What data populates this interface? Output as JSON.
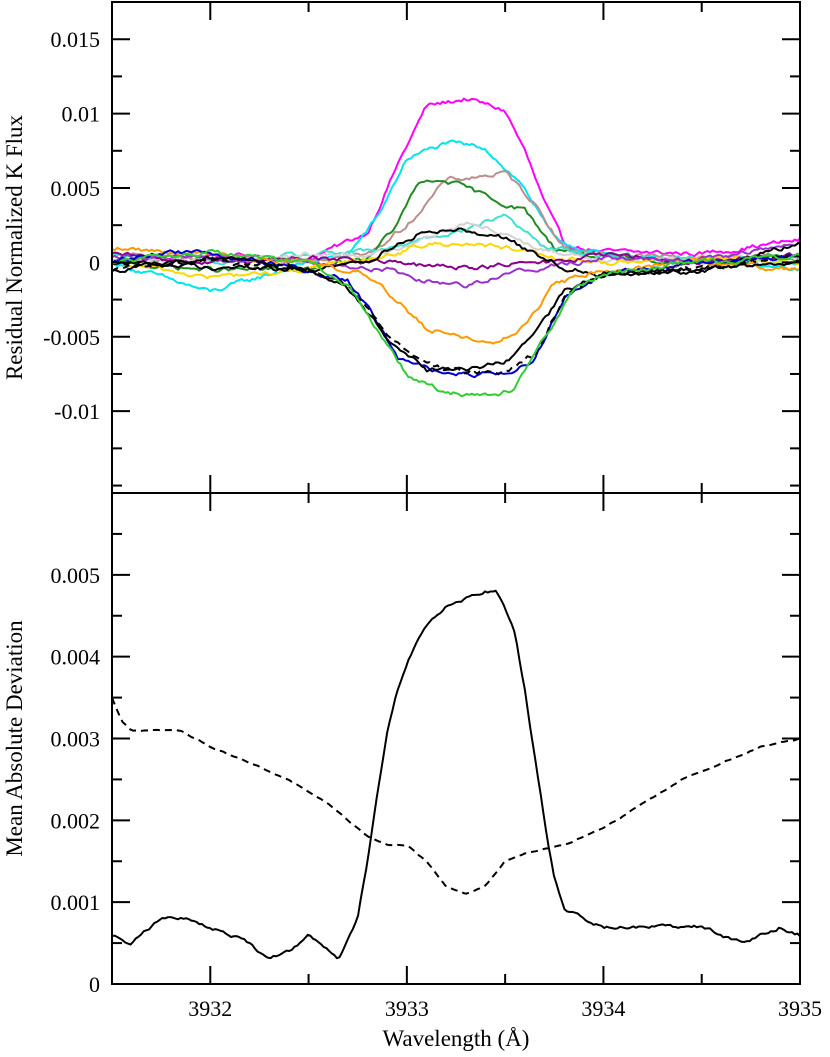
{
  "chart_data": [
    {
      "type": "line",
      "panel": "top",
      "title": "",
      "xlabel": "",
      "ylabel": "Residual Normalized K Flux",
      "xlim": [
        3931.5,
        3935.0
      ],
      "ylim": [
        -0.0155,
        0.0175
      ],
      "yticks": [
        -0.01,
        -0.005,
        0,
        0.005,
        0.01,
        0.015
      ],
      "ytick_labels": [
        "-0.01",
        "-0.005",
        "0",
        "0.005",
        "0.01",
        "0.015"
      ],
      "series": [
        {
          "color": "#ff00ff",
          "style": "solid",
          "x": [
            3931.5,
            3932.0,
            3932.5,
            3932.8,
            3932.95,
            3933.1,
            3933.3,
            3933.5,
            3933.6,
            3933.7,
            3933.8,
            3934.0,
            3934.5,
            3935.0
          ],
          "y": [
            0.0,
            0.0005,
            0.0002,
            0.002,
            0.0065,
            0.0105,
            0.011,
            0.0102,
            0.0075,
            0.004,
            0.0012,
            0.0007,
            0.0006,
            0.0015
          ]
        },
        {
          "color": "#00e5ee",
          "style": "solid",
          "x": [
            3931.5,
            3932.0,
            3932.5,
            3932.7,
            3932.85,
            3933.0,
            3933.2,
            3933.4,
            3933.6,
            3933.75,
            3934.0,
            3934.5,
            3935.0
          ],
          "y": [
            0.0,
            -0.002,
            0.0,
            0.0005,
            0.003,
            0.007,
            0.008,
            0.0077,
            0.005,
            0.0015,
            0.0005,
            0.0,
            -0.0005
          ]
        },
        {
          "color": "#bc8f8f",
          "style": "solid",
          "x": [
            3931.5,
            3932.0,
            3932.5,
            3932.8,
            3933.0,
            3933.2,
            3933.5,
            3933.65,
            3933.8,
            3934.0,
            3934.5,
            3935.0
          ],
          "y": [
            0.0005,
            0.0,
            0.0003,
            0.0005,
            0.0025,
            0.0055,
            0.006,
            0.004,
            0.001,
            0.0005,
            0.0003,
            0.0005
          ]
        },
        {
          "color": "#228b22",
          "style": "solid",
          "x": [
            3931.5,
            3932.0,
            3932.5,
            3932.8,
            3932.95,
            3933.05,
            3933.2,
            3933.45,
            3933.6,
            3933.75,
            3934.0,
            3934.5,
            3935.0
          ],
          "y": [
            0.0,
            -0.0005,
            -0.0005,
            0.0003,
            0.0025,
            0.0052,
            0.0055,
            0.0042,
            0.0035,
            0.001,
            0.0003,
            0.0,
            0.0003
          ]
        },
        {
          "color": "#40e0d0",
          "style": "solid",
          "x": [
            3931.5,
            3932.0,
            3932.5,
            3932.9,
            3933.1,
            3933.3,
            3933.5,
            3933.7,
            3934.0,
            3934.5,
            3935.0
          ],
          "y": [
            0.0005,
            0.0,
            0.0005,
            0.0008,
            0.0018,
            0.0022,
            0.0032,
            0.001,
            0.0005,
            0.0003,
            0.0
          ]
        },
        {
          "color": "#d3d3d3",
          "style": "solid",
          "x": [
            3931.5,
            3932.0,
            3932.5,
            3932.9,
            3933.1,
            3933.3,
            3933.5,
            3933.7,
            3934.0,
            3934.5,
            3935.0
          ],
          "y": [
            0.0,
            0.0002,
            0.0005,
            0.0006,
            0.0018,
            0.0026,
            0.002,
            0.0008,
            0.0003,
            0.0,
            0.0003
          ]
        },
        {
          "color": "#ffd700",
          "style": "solid",
          "x": [
            3931.5,
            3932.0,
            3932.5,
            3932.9,
            3933.1,
            3933.3,
            3933.5,
            3933.7,
            3934.0,
            3934.5,
            3935.0
          ],
          "y": [
            0.0,
            -0.001,
            -0.0005,
            0.0005,
            0.0012,
            0.0013,
            0.001,
            0.0003,
            0.0,
            0.0003,
            0.0
          ]
        },
        {
          "color": "#8b008b",
          "style": "solid",
          "x": [
            3931.5,
            3932.0,
            3932.5,
            3932.9,
            3933.1,
            3933.3,
            3933.5,
            3933.7,
            3934.0,
            3934.5,
            3935.0
          ],
          "y": [
            0.0005,
            0.0,
            0.0003,
            0.0,
            -0.0003,
            -0.0003,
            -0.0002,
            0.0,
            0.0005,
            0.0,
            0.0005
          ]
        },
        {
          "color": "#9932cc",
          "style": "solid",
          "x": [
            3931.5,
            3932.0,
            3932.5,
            3932.9,
            3933.1,
            3933.3,
            3933.5,
            3933.7,
            3934.0,
            3934.5,
            3935.0
          ],
          "y": [
            0.0005,
            0.0003,
            0.0,
            -0.0005,
            -0.0012,
            -0.0015,
            -0.0008,
            -0.0003,
            0.0003,
            0.0003,
            0.0012
          ]
        },
        {
          "color": "#000000",
          "style": "solid",
          "x": [
            3931.5,
            3932.0,
            3932.5,
            3932.8,
            3932.95,
            3933.1,
            3933.3,
            3933.5,
            3933.65,
            3933.8,
            3934.0,
            3934.5,
            3935.0
          ],
          "y": [
            0.0,
            -0.0003,
            -0.0005,
            0.0,
            0.0013,
            0.0022,
            0.0022,
            0.0017,
            0.0005,
            -0.0003,
            -0.0008,
            -0.0005,
            0.0013
          ]
        },
        {
          "color": "#ff9900",
          "style": "solid",
          "x": [
            3931.5,
            3932.0,
            3932.5,
            3932.8,
            3932.95,
            3933.1,
            3933.3,
            3933.45,
            3933.6,
            3933.75,
            3934.0,
            3934.5,
            3935.0
          ],
          "y": [
            0.001,
            0.0005,
            0.0,
            -0.0008,
            -0.0025,
            -0.0045,
            -0.005,
            -0.0055,
            -0.0042,
            -0.0015,
            -0.0005,
            0.0,
            -0.0005
          ]
        },
        {
          "color": "#0000cd",
          "style": "solid",
          "x": [
            3931.5,
            3931.8,
            3932.0,
            3932.5,
            3932.7,
            3932.85,
            3932.95,
            3933.1,
            3933.3,
            3933.5,
            3933.65,
            3933.8,
            3934.0,
            3934.5,
            3935.0
          ],
          "y": [
            0.0,
            0.0008,
            0.0005,
            -0.0005,
            -0.0012,
            -0.004,
            -0.0065,
            -0.0072,
            -0.0075,
            -0.0075,
            -0.0065,
            -0.0025,
            -0.0008,
            0.0,
            0.0005
          ]
        },
        {
          "color": "#000000",
          "style": "dashed",
          "x": [
            3931.5,
            3932.0,
            3932.5,
            3932.7,
            3932.9,
            3933.1,
            3933.3,
            3933.5,
            3933.65,
            3933.8,
            3934.0,
            3934.5,
            3935.0
          ],
          "y": [
            -0.0005,
            0.0002,
            -0.0005,
            -0.0015,
            -0.0048,
            -0.007,
            -0.0073,
            -0.0075,
            -0.0062,
            -0.0025,
            -0.0008,
            -0.0005,
            0.0005
          ]
        },
        {
          "color": "#000000",
          "style": "solid",
          "x": [
            3931.5,
            3932.0,
            3932.5,
            3932.7,
            3932.9,
            3933.1,
            3933.3,
            3933.5,
            3933.65,
            3933.8,
            3934.0,
            3934.5,
            3935.0
          ],
          "y": [
            -0.0005,
            0.0003,
            -0.0005,
            -0.0018,
            -0.005,
            -0.0073,
            -0.0072,
            -0.0068,
            -0.005,
            -0.002,
            -0.0008,
            -0.0005,
            0.0
          ]
        },
        {
          "color": "#32cd32",
          "style": "solid",
          "x": [
            3931.5,
            3932.0,
            3932.5,
            3932.7,
            3932.85,
            3933.0,
            3933.2,
            3933.4,
            3933.55,
            3933.7,
            3933.85,
            3934.0,
            3934.5,
            3935.0
          ],
          "y": [
            0.0,
            0.0007,
            0.0,
            -0.0015,
            -0.0045,
            -0.0075,
            -0.0088,
            -0.009,
            -0.0085,
            -0.005,
            -0.0018,
            -0.0008,
            0.0,
            0.0005
          ]
        }
      ]
    },
    {
      "type": "line",
      "panel": "bottom",
      "title": "",
      "xlabel": "Wavelength (Å)",
      "ylabel": "Mean Absolute Deviation",
      "xlim": [
        3931.5,
        3935.0
      ],
      "ylim": [
        0.0,
        0.006
      ],
      "xticks": [
        3932,
        3933,
        3934,
        3935
      ],
      "xtick_labels": [
        "3932",
        "3933",
        "3934",
        "3935"
      ],
      "yticks": [
        0,
        0.001,
        0.002,
        0.003,
        0.004,
        0.005
      ],
      "ytick_labels": [
        "0",
        "0.001",
        "0.002",
        "0.003",
        "0.004",
        "0.005"
      ],
      "series": [
        {
          "color": "#000000",
          "style": "solid",
          "x": [
            3931.5,
            3931.6,
            3931.75,
            3931.9,
            3932.0,
            3932.1,
            3932.2,
            3932.3,
            3932.4,
            3932.5,
            3932.6,
            3932.65,
            3932.75,
            3932.8,
            3932.85,
            3932.9,
            3932.95,
            3933.0,
            3933.05,
            3933.1,
            3933.2,
            3933.3,
            3933.4,
            3933.45,
            3933.5,
            3933.55,
            3933.6,
            3933.65,
            3933.7,
            3933.75,
            3933.8,
            3933.9,
            3934.0,
            3934.2,
            3934.4,
            3934.5,
            3934.6,
            3934.7,
            3934.8,
            3934.9,
            3935.0
          ],
          "y": [
            0.0006,
            0.0005,
            0.0008,
            0.0008,
            0.0007,
            0.0006,
            0.0005,
            0.0003,
            0.0004,
            0.0006,
            0.0004,
            0.0003,
            0.0008,
            0.0015,
            0.0023,
            0.0031,
            0.0036,
            0.0039,
            0.0042,
            0.0044,
            0.0046,
            0.0047,
            0.0048,
            0.0048,
            0.0046,
            0.0043,
            0.0036,
            0.0028,
            0.002,
            0.0013,
            0.0009,
            0.0008,
            0.0007,
            0.0007,
            0.0007,
            0.0007,
            0.0006,
            0.0005,
            0.0006,
            0.0007,
            0.0006
          ]
        },
        {
          "color": "#000000",
          "style": "dashed",
          "x": [
            3931.5,
            3931.55,
            3931.6,
            3931.65,
            3931.75,
            3931.85,
            3932.0,
            3932.2,
            3932.4,
            3932.6,
            3932.8,
            3932.9,
            3933.0,
            3933.1,
            3933.2,
            3933.3,
            3933.4,
            3933.5,
            3933.6,
            3933.8,
            3934.0,
            3934.2,
            3934.4,
            3934.6,
            3934.8,
            3935.0
          ],
          "y": [
            0.0035,
            0.0032,
            0.0031,
            0.0031,
            0.0031,
            0.0031,
            0.0029,
            0.0027,
            0.0025,
            0.0022,
            0.0018,
            0.0017,
            0.0017,
            0.0015,
            0.0012,
            0.0011,
            0.0012,
            0.0015,
            0.0016,
            0.0017,
            0.0019,
            0.0022,
            0.0025,
            0.0027,
            0.0029,
            0.003
          ]
        }
      ]
    }
  ]
}
